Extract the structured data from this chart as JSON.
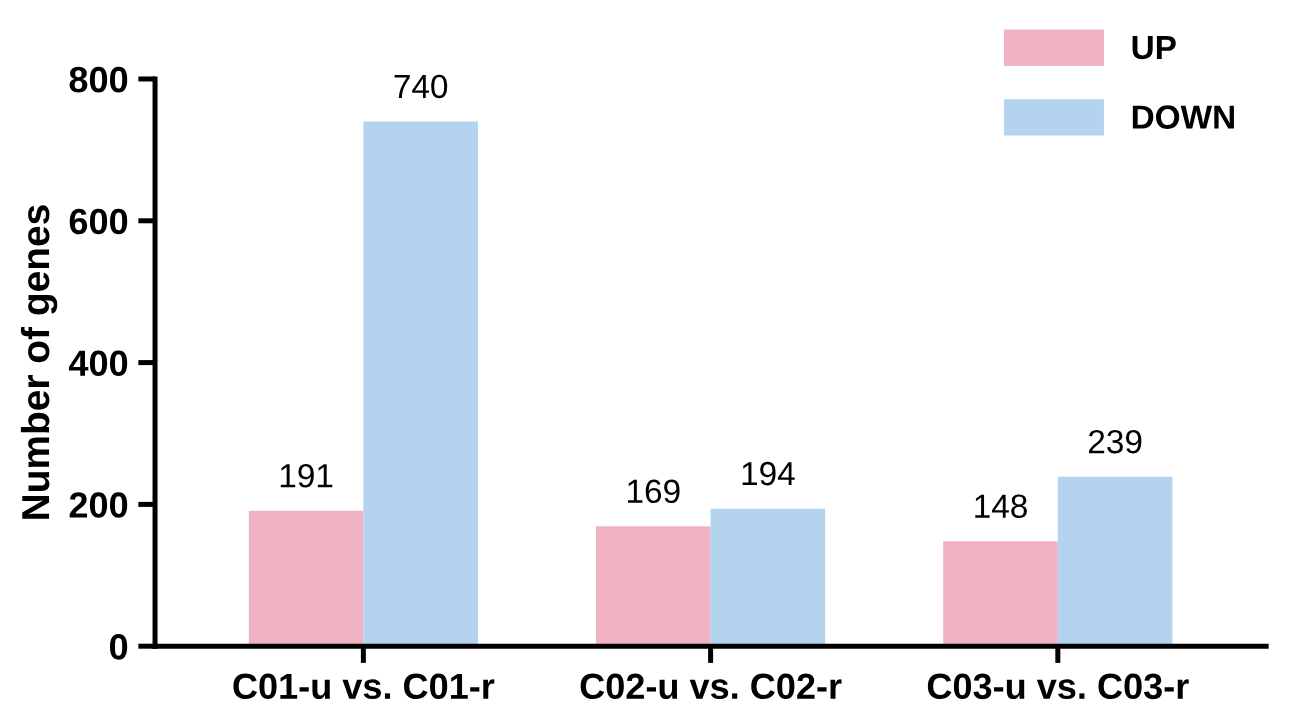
{
  "chart_data": {
    "type": "bar",
    "ylabel": "Number of genes",
    "categories": [
      "C01-u vs. C01-r",
      "C02-u vs. C02-r",
      "C03-u vs. C03-r"
    ],
    "series": [
      {
        "name": "UP",
        "color": "#efb3c3",
        "values": [
          191,
          169,
          148
        ]
      },
      {
        "name": "DOWN",
        "color": "#b3d3ef",
        "values": [
          740,
          194,
          239
        ]
      }
    ],
    "ylim": [
      0,
      800
    ],
    "yticks": [
      0,
      200,
      400,
      600,
      800
    ],
    "grid": false,
    "legend": "top right",
    "data_labels": true
  }
}
